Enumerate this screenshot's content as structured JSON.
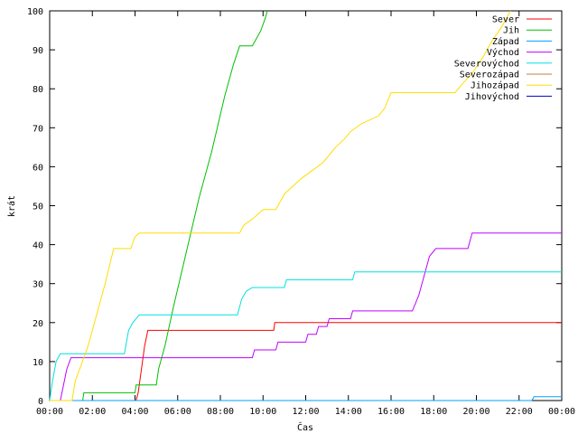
{
  "chart_data": {
    "type": "line",
    "title": "",
    "xlabel": "Čas",
    "ylabel": "krát",
    "xlim": [
      0,
      24
    ],
    "ylim": [
      0,
      100
    ],
    "x_unit": "hours",
    "x_ticks": [
      {
        "value": 0,
        "label": "00:00"
      },
      {
        "value": 2,
        "label": "02:00"
      },
      {
        "value": 4,
        "label": "04:00"
      },
      {
        "value": 6,
        "label": "06:00"
      },
      {
        "value": 8,
        "label": "08:00"
      },
      {
        "value": 10,
        "label": "10:00"
      },
      {
        "value": 12,
        "label": "12:00"
      },
      {
        "value": 14,
        "label": "14:00"
      },
      {
        "value": 16,
        "label": "16:00"
      },
      {
        "value": 18,
        "label": "18:00"
      },
      {
        "value": 20,
        "label": "20:00"
      },
      {
        "value": 22,
        "label": "22:00"
      },
      {
        "value": 24,
        "label": "00:00"
      }
    ],
    "y_ticks": [
      0,
      10,
      20,
      30,
      40,
      50,
      60,
      70,
      80,
      90,
      100
    ],
    "grid": false,
    "legend_position": "top-right",
    "series": [
      {
        "name": "Sever",
        "color": "#ff0000",
        "points": [
          [
            0,
            0
          ],
          [
            4.05,
            0
          ],
          [
            4.15,
            2
          ],
          [
            4.3,
            8
          ],
          [
            4.45,
            14
          ],
          [
            4.6,
            18
          ],
          [
            10.5,
            18
          ],
          [
            10.55,
            20
          ],
          [
            24,
            20
          ]
        ]
      },
      {
        "name": "Jih",
        "color": "#00c000",
        "points": [
          [
            0,
            0
          ],
          [
            1.55,
            0
          ],
          [
            1.6,
            2
          ],
          [
            4,
            2
          ],
          [
            4.05,
            4
          ],
          [
            5.0,
            4
          ],
          [
            5.1,
            8
          ],
          [
            5.4,
            14
          ],
          [
            5.8,
            24
          ],
          [
            6.4,
            38
          ],
          [
            7.0,
            52
          ],
          [
            7.6,
            64
          ],
          [
            8.2,
            78
          ],
          [
            8.6,
            86
          ],
          [
            8.9,
            91
          ],
          [
            9.5,
            91
          ],
          [
            9.7,
            93
          ],
          [
            9.9,
            95
          ],
          [
            10.1,
            98
          ],
          [
            10.2,
            100
          ]
        ]
      },
      {
        "name": "Západ",
        "color": "#00a0ff",
        "points": [
          [
            0,
            0
          ],
          [
            22.6,
            0
          ],
          [
            22.7,
            1
          ],
          [
            24,
            1
          ]
        ]
      },
      {
        "name": "Východ",
        "color": "#c000ff",
        "points": [
          [
            0,
            0
          ],
          [
            0.5,
            0
          ],
          [
            0.8,
            8
          ],
          [
            1.0,
            11
          ],
          [
            9.5,
            11
          ],
          [
            9.6,
            13
          ],
          [
            10.6,
            13
          ],
          [
            10.7,
            15
          ],
          [
            12.0,
            15
          ],
          [
            12.1,
            17
          ],
          [
            12.5,
            17
          ],
          [
            12.6,
            19
          ],
          [
            13.0,
            19
          ],
          [
            13.1,
            21
          ],
          [
            14.1,
            21
          ],
          [
            14.2,
            23
          ],
          [
            17.0,
            23
          ],
          [
            17.3,
            27
          ],
          [
            17.6,
            33
          ],
          [
            17.8,
            37
          ],
          [
            18.1,
            39
          ],
          [
            19.6,
            39
          ],
          [
            19.8,
            43
          ],
          [
            24,
            43
          ]
        ]
      },
      {
        "name": "Severovýchod",
        "color": "#00e0e0",
        "points": [
          [
            0,
            0
          ],
          [
            0.1,
            4
          ],
          [
            0.3,
            10
          ],
          [
            0.5,
            12
          ],
          [
            3.5,
            12
          ],
          [
            3.7,
            18
          ],
          [
            3.9,
            20
          ],
          [
            4.2,
            22
          ],
          [
            8.8,
            22
          ],
          [
            9.0,
            26
          ],
          [
            9.2,
            28
          ],
          [
            9.5,
            29
          ],
          [
            11.0,
            29
          ],
          [
            11.1,
            31
          ],
          [
            14.2,
            31
          ],
          [
            14.3,
            33
          ],
          [
            24,
            33
          ]
        ]
      },
      {
        "name": "Severozápad",
        "color": "#c08040",
        "points": []
      },
      {
        "name": "Jihozápad",
        "color": "#ffdd00",
        "points": [
          [
            0,
            0
          ],
          [
            1.05,
            0
          ],
          [
            1.2,
            5
          ],
          [
            1.4,
            8
          ],
          [
            1.8,
            14
          ],
          [
            2.2,
            22
          ],
          [
            2.6,
            30
          ],
          [
            3.0,
            39
          ],
          [
            3.8,
            39
          ],
          [
            4.0,
            42
          ],
          [
            4.2,
            43
          ],
          [
            8.9,
            43
          ],
          [
            9.1,
            45
          ],
          [
            9.6,
            47
          ],
          [
            10.0,
            49
          ],
          [
            10.6,
            49
          ],
          [
            10.8,
            51
          ],
          [
            11.0,
            53
          ],
          [
            11.4,
            55
          ],
          [
            11.8,
            57
          ],
          [
            12.3,
            59
          ],
          [
            12.8,
            61
          ],
          [
            13.1,
            63
          ],
          [
            13.4,
            65
          ],
          [
            13.8,
            67
          ],
          [
            14.1,
            69
          ],
          [
            14.6,
            71
          ],
          [
            15.4,
            73
          ],
          [
            15.7,
            75
          ],
          [
            16.0,
            79
          ],
          [
            19.0,
            79
          ],
          [
            19.3,
            81
          ],
          [
            19.8,
            84
          ],
          [
            20.3,
            88
          ],
          [
            20.7,
            92
          ],
          [
            21.2,
            96
          ],
          [
            21.6,
            100
          ]
        ]
      },
      {
        "name": "Jihovýchod",
        "color": "#0000c0",
        "points": []
      }
    ]
  }
}
